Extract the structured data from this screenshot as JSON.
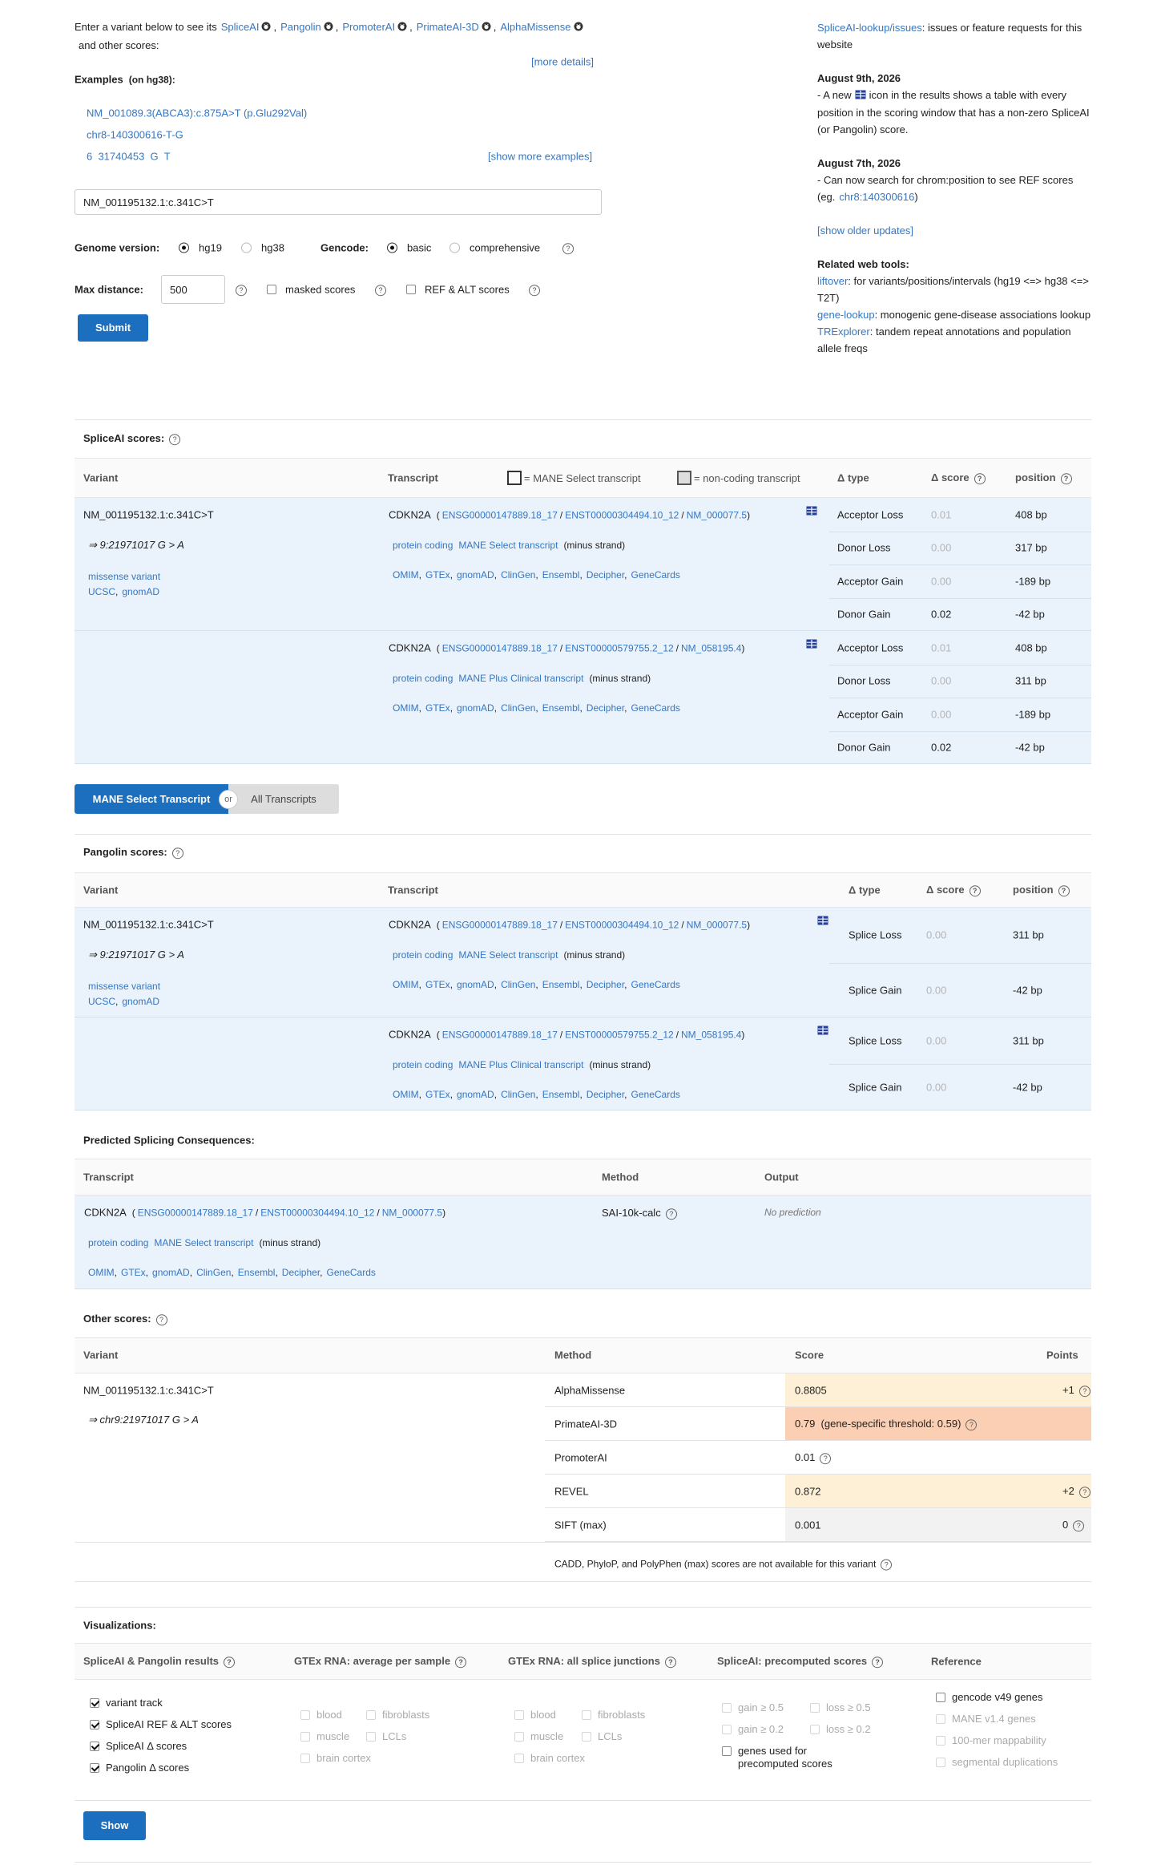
{
  "intro": {
    "lead": "Enter a variant below to see its",
    "tools": [
      "SpliceAI",
      "Pangolin",
      "PromoterAI",
      "PrimateAI-3D",
      "AlphaMissense"
    ],
    "trail": "and other scores:",
    "more_details": "[more details]"
  },
  "examples": {
    "label": "Examples",
    "build": "(on hg38):",
    "items": [
      "NM_001089.3(ABCA3):c.875A>T (p.Glu292Val)",
      "chr8-140300616-T-G",
      "6  31740453  G  T"
    ],
    "show_more": "[show more examples]"
  },
  "form": {
    "variant": "NM_001195132.1:c.341C>T",
    "genome_label": "Genome version:",
    "genome_options": [
      {
        "label": "hg19",
        "checked": true
      },
      {
        "label": "hg38"
      }
    ],
    "gencode_label": "Gencode:",
    "gencode_options": [
      {
        "label": "basic",
        "checked": true
      },
      {
        "label": "comprehensive"
      }
    ],
    "max_distance_label": "Max distance:",
    "max_distance": "500",
    "masked": "masked scores",
    "ref_alt": "REF & ALT scores",
    "submit": "Submit"
  },
  "sidebar": {
    "issues": {
      "link": "SpliceAI-lookup/issues",
      "text": ": issues or feature requests for this website"
    },
    "updates": [
      {
        "date": "August 9th, 2026",
        "parts": [
          "- A new",
          "icon in the results shows a table with every position in the scoring window that has a non-zero SpliceAI (or Pangolin) score."
        ]
      },
      {
        "date": "August 7th, 2026",
        "parts": [
          "- Can now search for chrom:position to see REF scores (eg.",
          ")"
        ],
        "link": "chr8:140300616"
      }
    ],
    "older": "[show older updates]",
    "tools_title": "Related web tools:",
    "tools": [
      {
        "link": "liftover",
        "text": ": for variants/positions/intervals (hg19 <=> hg38 <=> T2T)"
      },
      {
        "link": "gene-lookup",
        "text": ": monogenic gene-disease associations lookup"
      },
      {
        "link": "TRExplorer",
        "text": ": tandem repeat annotations and population allele freqs"
      }
    ]
  },
  "punct": {
    "comma": ",",
    "slash": "/",
    "open": "(",
    "close": ")",
    "help": "?"
  },
  "variant": {
    "hgvs": "NM_001195132.1:c.341C>T",
    "locus": "⇒ 9:21971017 G > A",
    "consequence": "missense variant",
    "links": [
      "UCSC",
      "gnomAD"
    ]
  },
  "transcripts": [
    {
      "gene": "CDKN2A",
      "ids": [
        "ENSG00000147889.18_17",
        "ENST00000304494.10_12",
        "NM_000077.5"
      ],
      "tags": [
        "protein coding",
        "MANE Select transcript"
      ],
      "strand": "(minus strand)"
    },
    {
      "gene": "CDKN2A",
      "ids": [
        "ENSG00000147889.18_17",
        "ENST00000579755.2_12",
        "NM_058195.4"
      ],
      "tags": [
        "protein coding",
        "MANE Plus Clinical transcript"
      ],
      "strand": "(minus strand)"
    }
  ],
  "resource_links": [
    "OMIM",
    "GTEx",
    "gnomAD",
    "ClinGen",
    "Ensembl",
    "Decipher",
    "GeneCards"
  ],
  "spliceai": {
    "title": "SpliceAI scores:",
    "headers": {
      "variant": "Variant",
      "transcript": "Transcript",
      "mane_legend": "= MANE Select transcript",
      "noncoding_legend": "= non-coding transcript",
      "type": "Δ type",
      "score": "Δ score",
      "position": "position"
    },
    "blocks": [
      [
        {
          "type": "Acceptor Loss",
          "score": "0.01",
          "position": "408 bp",
          "faded": true
        },
        {
          "type": "Donor Loss",
          "score": "0.00",
          "position": "317 bp",
          "faded": true
        },
        {
          "type": "Acceptor Gain",
          "score": "0.00",
          "position": "-189 bp",
          "faded": true
        },
        {
          "type": "Donor Gain",
          "score": "0.02",
          "position": "-42 bp"
        }
      ],
      [
        {
          "type": "Acceptor Loss",
          "score": "0.01",
          "position": "408 bp",
          "faded": true
        },
        {
          "type": "Donor Loss",
          "score": "0.00",
          "position": "311 bp",
          "faded": true
        },
        {
          "type": "Acceptor Gain",
          "score": "0.00",
          "position": "-189 bp",
          "faded": true
        },
        {
          "type": "Donor Gain",
          "score": "0.02",
          "position": "-42 bp"
        }
      ]
    ]
  },
  "toggle": {
    "selected": "MANE Select Transcript",
    "or": "or",
    "other": "All Transcripts"
  },
  "pangolin": {
    "title": "Pangolin scores:",
    "headers": {
      "variant": "Variant",
      "transcript": "Transcript",
      "type": "Δ type",
      "score": "Δ score",
      "position": "position"
    },
    "blocks": [
      [
        {
          "type": "Splice Loss",
          "score": "0.00",
          "position": "311 bp",
          "faded": true
        },
        {
          "type": "Splice Gain",
          "score": "0.00",
          "position": "-42 bp",
          "faded": true
        }
      ],
      [
        {
          "type": "Splice Loss",
          "score": "0.00",
          "position": "311 bp",
          "faded": true
        },
        {
          "type": "Splice Gain",
          "score": "0.00",
          "position": "-42 bp",
          "faded": true
        }
      ]
    ]
  },
  "consequences": {
    "title": "Predicted Splicing Consequences:",
    "headers": [
      "Transcript",
      "Method",
      "Output"
    ],
    "method": "SAI-10k-calc",
    "output": "No prediction"
  },
  "other_scores": {
    "title": "Other scores:",
    "headers": [
      "Variant",
      "Method",
      "Score",
      "Points"
    ],
    "locus": "⇒ chr9:21971017 G > A",
    "rows": [
      {
        "method": "AlphaMissense",
        "score": "0.8805",
        "points": "+1",
        "color": "#fdf0d7"
      },
      {
        "method": "PrimateAI-3D",
        "score": "0.79  (gene-specific threshold: 0.59)",
        "color": "#fbcfb3"
      },
      {
        "method": "PromoterAI",
        "score": "0.01"
      },
      {
        "method": "REVEL",
        "score": "0.872",
        "points": "+2",
        "color": "#fdf0d7"
      },
      {
        "method": "SIFT (max)",
        "score": "0.001",
        "points": "0",
        "color": "#f2f2f2"
      }
    ],
    "note": "CADD, PhyloP, and PolyPhen (max) scores are not available for this variant"
  },
  "visualizations": {
    "title": "Visualizations:",
    "columns": [
      {
        "header": "SpliceAI & Pangolin results",
        "items": [
          {
            "label": "variant track",
            "checked": true
          },
          {
            "label": "SpliceAI REF & ALT scores",
            "checked": true
          },
          {
            "label": "SpliceAI Δ  scores",
            "checked": true
          },
          {
            "label": "Pangolin Δ  scores",
            "checked": true
          }
        ]
      },
      {
        "header": "GTEx RNA: average per sample",
        "items": [
          {
            "label": "blood",
            "enabled": false
          },
          {
            "label": "fibroblasts",
            "enabled": false
          },
          {
            "label": "muscle",
            "enabled": false
          },
          {
            "label": "LCLs",
            "enabled": false
          },
          {
            "label": "brain cortex",
            "enabled": false
          }
        ]
      },
      {
        "header": "GTEx RNA: all splice junctions",
        "items": [
          {
            "label": "blood",
            "enabled": false
          },
          {
            "label": "fibroblasts",
            "enabled": false
          },
          {
            "label": "muscle",
            "enabled": false
          },
          {
            "label": "LCLs",
            "enabled": false
          },
          {
            "label": "brain cortex",
            "enabled": false
          }
        ]
      },
      {
        "header": "SpliceAI: precomputed scores",
        "items": [
          {
            "label": "gain ≥ 0.5",
            "enabled": false
          },
          {
            "label": "loss ≥ 0.5",
            "enabled": false
          },
          {
            "label": "gain ≥ 0.2",
            "enabled": false
          },
          {
            "label": "loss ≥ 0.2",
            "enabled": false
          },
          {
            "label": "genes used for precomputed scores"
          }
        ]
      },
      {
        "header": "Reference",
        "items": [
          {
            "label": "gencode v49 genes"
          },
          {
            "label": "MANE v1.4 genes",
            "enabled": false
          },
          {
            "label": "100-mer mappability",
            "enabled": false
          },
          {
            "label": "segmental duplications",
            "enabled": false
          }
        ]
      }
    ],
    "button": "Show"
  }
}
